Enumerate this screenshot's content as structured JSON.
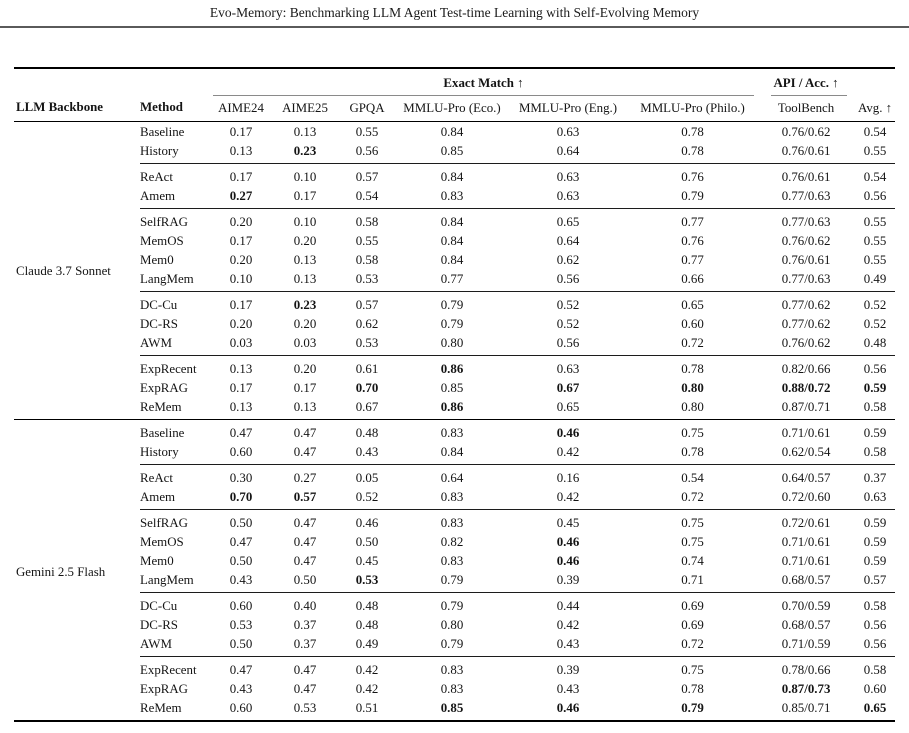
{
  "title": "Evo-Memory: Benchmarking LLM Agent Test-time Learning with Self-Evolving Memory",
  "table": {
    "header": {
      "llm_backbone": "LLM Backbone",
      "method": "Method",
      "exact_match_group": "Exact Match ↑",
      "api_acc_group": "API / Acc. ↑",
      "subcolumns": [
        "AIME24",
        "AIME25",
        "GPQA",
        "MMLU-Pro (Eco.)",
        "MMLU-Pro (Eng.)",
        "MMLU-Pro (Philo.)",
        "ToolBench",
        "Avg. ↑"
      ]
    },
    "sections": [
      {
        "backbone": "Claude 3.7 Sonnet",
        "groups": [
          {
            "rows": [
              {
                "method": "Baseline",
                "values": [
                  "0.17",
                  "0.13",
                  "0.55",
                  "0.84",
                  "0.63",
                  "0.78",
                  "0.76/0.62",
                  "0.54"
                ],
                "bold": []
              },
              {
                "method": "History",
                "values": [
                  "0.13",
                  "0.23",
                  "0.56",
                  "0.85",
                  "0.64",
                  "0.78",
                  "0.76/0.61",
                  "0.55"
                ],
                "bold": [
                  1
                ]
              }
            ]
          },
          {
            "rows": [
              {
                "method": "ReAct",
                "values": [
                  "0.17",
                  "0.10",
                  "0.57",
                  "0.84",
                  "0.63",
                  "0.76",
                  "0.76/0.61",
                  "0.54"
                ],
                "bold": []
              },
              {
                "method": "Amem",
                "values": [
                  "0.27",
                  "0.17",
                  "0.54",
                  "0.83",
                  "0.63",
                  "0.79",
                  "0.77/0.63",
                  "0.56"
                ],
                "bold": [
                  0
                ]
              }
            ]
          },
          {
            "rows": [
              {
                "method": "SelfRAG",
                "values": [
                  "0.20",
                  "0.10",
                  "0.58",
                  "0.84",
                  "0.65",
                  "0.77",
                  "0.77/0.63",
                  "0.55"
                ],
                "bold": []
              },
              {
                "method": "MemOS",
                "values": [
                  "0.17",
                  "0.20",
                  "0.55",
                  "0.84",
                  "0.64",
                  "0.76",
                  "0.76/0.62",
                  "0.55"
                ],
                "bold": []
              },
              {
                "method": "Mem0",
                "values": [
                  "0.20",
                  "0.13",
                  "0.58",
                  "0.84",
                  "0.62",
                  "0.77",
                  "0.76/0.61",
                  "0.55"
                ],
                "bold": []
              },
              {
                "method": "LangMem",
                "values": [
                  "0.10",
                  "0.13",
                  "0.53",
                  "0.77",
                  "0.56",
                  "0.66",
                  "0.77/0.63",
                  "0.49"
                ],
                "bold": []
              }
            ]
          },
          {
            "rows": [
              {
                "method": "DC-Cu",
                "values": [
                  "0.17",
                  "0.23",
                  "0.57",
                  "0.79",
                  "0.52",
                  "0.65",
                  "0.77/0.62",
                  "0.52"
                ],
                "bold": [
                  1
                ]
              },
              {
                "method": "DC-RS",
                "values": [
                  "0.20",
                  "0.20",
                  "0.62",
                  "0.79",
                  "0.52",
                  "0.60",
                  "0.77/0.62",
                  "0.52"
                ],
                "bold": []
              },
              {
                "method": "AWM",
                "values": [
                  "0.03",
                  "0.03",
                  "0.53",
                  "0.80",
                  "0.56",
                  "0.72",
                  "0.76/0.62",
                  "0.48"
                ],
                "bold": []
              }
            ]
          },
          {
            "rows": [
              {
                "method": "ExpRecent",
                "values": [
                  "0.13",
                  "0.20",
                  "0.61",
                  "0.86",
                  "0.63",
                  "0.78",
                  "0.82/0.66",
                  "0.56"
                ],
                "bold": [
                  3
                ]
              },
              {
                "method": "ExpRAG",
                "values": [
                  "0.17",
                  "0.17",
                  "0.70",
                  "0.85",
                  "0.67",
                  "0.80",
                  "0.88/0.72",
                  "0.59"
                ],
                "bold": [
                  2,
                  4,
                  5,
                  6,
                  7
                ]
              },
              {
                "method": "ReMem",
                "values": [
                  "0.13",
                  "0.13",
                  "0.67",
                  "0.86",
                  "0.65",
                  "0.80",
                  "0.87/0.71",
                  "0.58"
                ],
                "bold": [
                  3
                ]
              }
            ]
          }
        ]
      },
      {
        "backbone": "Gemini 2.5 Flash",
        "groups": [
          {
            "rows": [
              {
                "method": "Baseline",
                "values": [
                  "0.47",
                  "0.47",
                  "0.48",
                  "0.83",
                  "0.46",
                  "0.75",
                  "0.71/0.61",
                  "0.59"
                ],
                "bold": [
                  4
                ]
              },
              {
                "method": "History",
                "values": [
                  "0.60",
                  "0.47",
                  "0.43",
                  "0.84",
                  "0.42",
                  "0.78",
                  "0.62/0.54",
                  "0.58"
                ],
                "bold": []
              }
            ]
          },
          {
            "rows": [
              {
                "method": "ReAct",
                "values": [
                  "0.30",
                  "0.27",
                  "0.05",
                  "0.64",
                  "0.16",
                  "0.54",
                  "0.64/0.57",
                  "0.37"
                ],
                "bold": []
              },
              {
                "method": "Amem",
                "values": [
                  "0.70",
                  "0.57",
                  "0.52",
                  "0.83",
                  "0.42",
                  "0.72",
                  "0.72/0.60",
                  "0.63"
                ],
                "bold": [
                  0,
                  1
                ]
              }
            ]
          },
          {
            "rows": [
              {
                "method": "SelfRAG",
                "values": [
                  "0.50",
                  "0.47",
                  "0.46",
                  "0.83",
                  "0.45",
                  "0.75",
                  "0.72/0.61",
                  "0.59"
                ],
                "bold": []
              },
              {
                "method": "MemOS",
                "values": [
                  "0.47",
                  "0.47",
                  "0.50",
                  "0.82",
                  "0.46",
                  "0.75",
                  "0.71/0.61",
                  "0.59"
                ],
                "bold": [
                  4
                ]
              },
              {
                "method": "Mem0",
                "values": [
                  "0.50",
                  "0.47",
                  "0.45",
                  "0.83",
                  "0.46",
                  "0.74",
                  "0.71/0.61",
                  "0.59"
                ],
                "bold": [
                  4
                ]
              },
              {
                "method": "LangMem",
                "values": [
                  "0.43",
                  "0.50",
                  "0.53",
                  "0.79",
                  "0.39",
                  "0.71",
                  "0.68/0.57",
                  "0.57"
                ],
                "bold": [
                  2
                ]
              }
            ]
          },
          {
            "rows": [
              {
                "method": "DC-Cu",
                "values": [
                  "0.60",
                  "0.40",
                  "0.48",
                  "0.79",
                  "0.44",
                  "0.69",
                  "0.70/0.59",
                  "0.58"
                ],
                "bold": []
              },
              {
                "method": "DC-RS",
                "values": [
                  "0.53",
                  "0.37",
                  "0.48",
                  "0.80",
                  "0.42",
                  "0.69",
                  "0.68/0.57",
                  "0.56"
                ],
                "bold": []
              },
              {
                "method": "AWM",
                "values": [
                  "0.50",
                  "0.37",
                  "0.49",
                  "0.79",
                  "0.43",
                  "0.72",
                  "0.71/0.59",
                  "0.56"
                ],
                "bold": []
              }
            ]
          },
          {
            "rows": [
              {
                "method": "ExpRecent",
                "values": [
                  "0.47",
                  "0.47",
                  "0.42",
                  "0.83",
                  "0.39",
                  "0.75",
                  "0.78/0.66",
                  "0.58"
                ],
                "bold": []
              },
              {
                "method": "ExpRAG",
                "values": [
                  "0.43",
                  "0.47",
                  "0.42",
                  "0.83",
                  "0.43",
                  "0.78",
                  "0.87/0.73",
                  "0.60"
                ],
                "bold": [
                  6
                ]
              },
              {
                "method": "ReMem",
                "values": [
                  "0.60",
                  "0.53",
                  "0.51",
                  "0.85",
                  "0.46",
                  "0.79",
                  "0.85/0.71",
                  "0.65"
                ],
                "bold": [
                  3,
                  4,
                  5,
                  7
                ]
              }
            ]
          }
        ]
      }
    ]
  }
}
